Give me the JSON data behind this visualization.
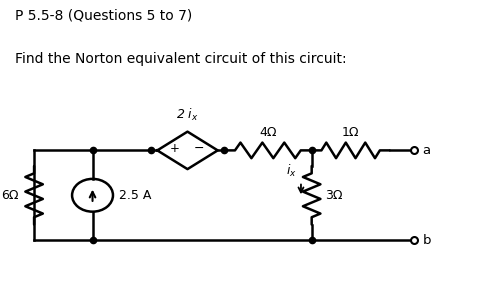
{
  "title_line1": "P 5.5-8 (Questions 5 to 7)",
  "title_line2": "Find the Norton equivalent circuit of this circuit:",
  "title_color": "#000000",
  "bg_color": "#ffffff",
  "circuit_color": "#000000",
  "fig_width": 4.87,
  "fig_height": 2.87,
  "dpi": 100,
  "resistor_6_label": "6Ω",
  "resistor_4_label": "4Ω",
  "resistor_1_label": "1Ω",
  "resistor_3_label": "3Ω",
  "current_source_label": "2.5 A",
  "terminal_a": "a",
  "terminal_b": "b"
}
